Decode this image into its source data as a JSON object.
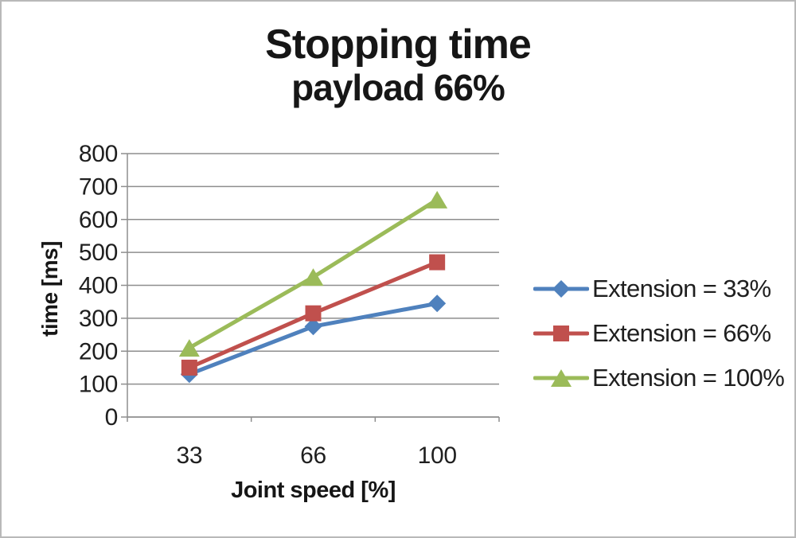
{
  "chart_data": {
    "type": "line",
    "title": "Stopping time",
    "subtitle": "payload 66%",
    "xlabel": "Joint speed [%]",
    "ylabel": "time [ms]",
    "categories": [
      "33",
      "66",
      "100"
    ],
    "series": [
      {
        "name": "Extension = 33%",
        "marker": "diamond",
        "color": "#4f81bd",
        "values": [
          130,
          275,
          345
        ]
      },
      {
        "name": "Extension = 66%",
        "marker": "square",
        "color": "#c0504d",
        "values": [
          150,
          315,
          470
        ]
      },
      {
        "name": "Extension = 100%",
        "marker": "triangle",
        "color": "#9bbb59",
        "values": [
          210,
          425,
          660
        ]
      }
    ],
    "ylim": [
      0,
      800
    ],
    "ytick_step": 100,
    "grid": true,
    "legend_position": "right",
    "colors": {
      "gridline": "#8e8e8e",
      "axis": "#8e8e8e",
      "text": "#1f1f1f",
      "background": "#ffffff",
      "frame_border": "#b9b9b9"
    }
  }
}
